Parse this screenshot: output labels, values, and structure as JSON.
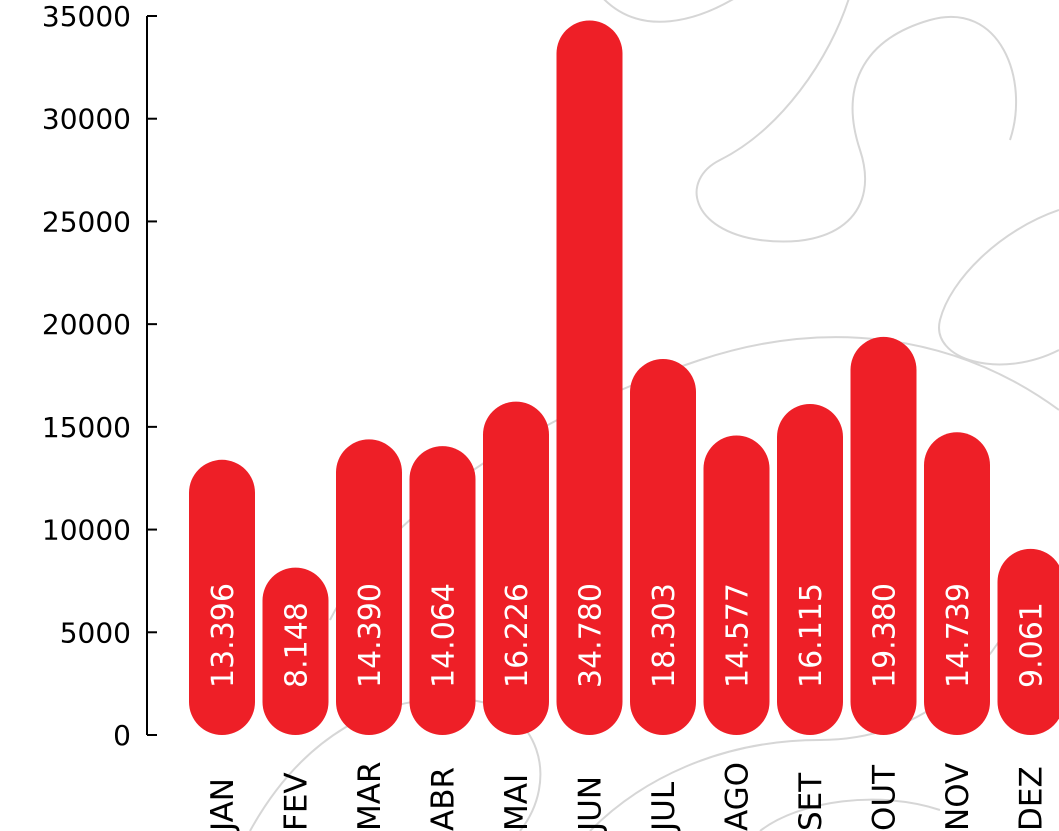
{
  "chart_data": {
    "type": "bar",
    "categories": [
      "JAN",
      "FEV",
      "MAR",
      "ABR",
      "MAI",
      "JUN",
      "JUL",
      "AGO",
      "SET",
      "OUT",
      "NOV",
      "DEZ"
    ],
    "values": [
      13396,
      8148,
      14390,
      14064,
      16226,
      34780,
      18303,
      14577,
      16115,
      19380,
      14739,
      9061
    ],
    "value_labels": [
      "13.396",
      "8.148",
      "14.390",
      "14.064",
      "16.226",
      "34.780",
      "18.303",
      "14.577",
      "16.115",
      "19.380",
      "14.739",
      "9.061"
    ],
    "y_ticks": [
      "0",
      "5000",
      "10000",
      "15000",
      "20000",
      "25000",
      "30000",
      "35000"
    ],
    "ylim": [
      0,
      35000
    ],
    "title": "",
    "xlabel": "",
    "ylabel": "",
    "grid": false,
    "legend": "none",
    "colors": {
      "bar": "#ee1f27",
      "axis": "#000000",
      "value_label": "#ffffff",
      "background_swirl": "#d6d6d6"
    }
  }
}
